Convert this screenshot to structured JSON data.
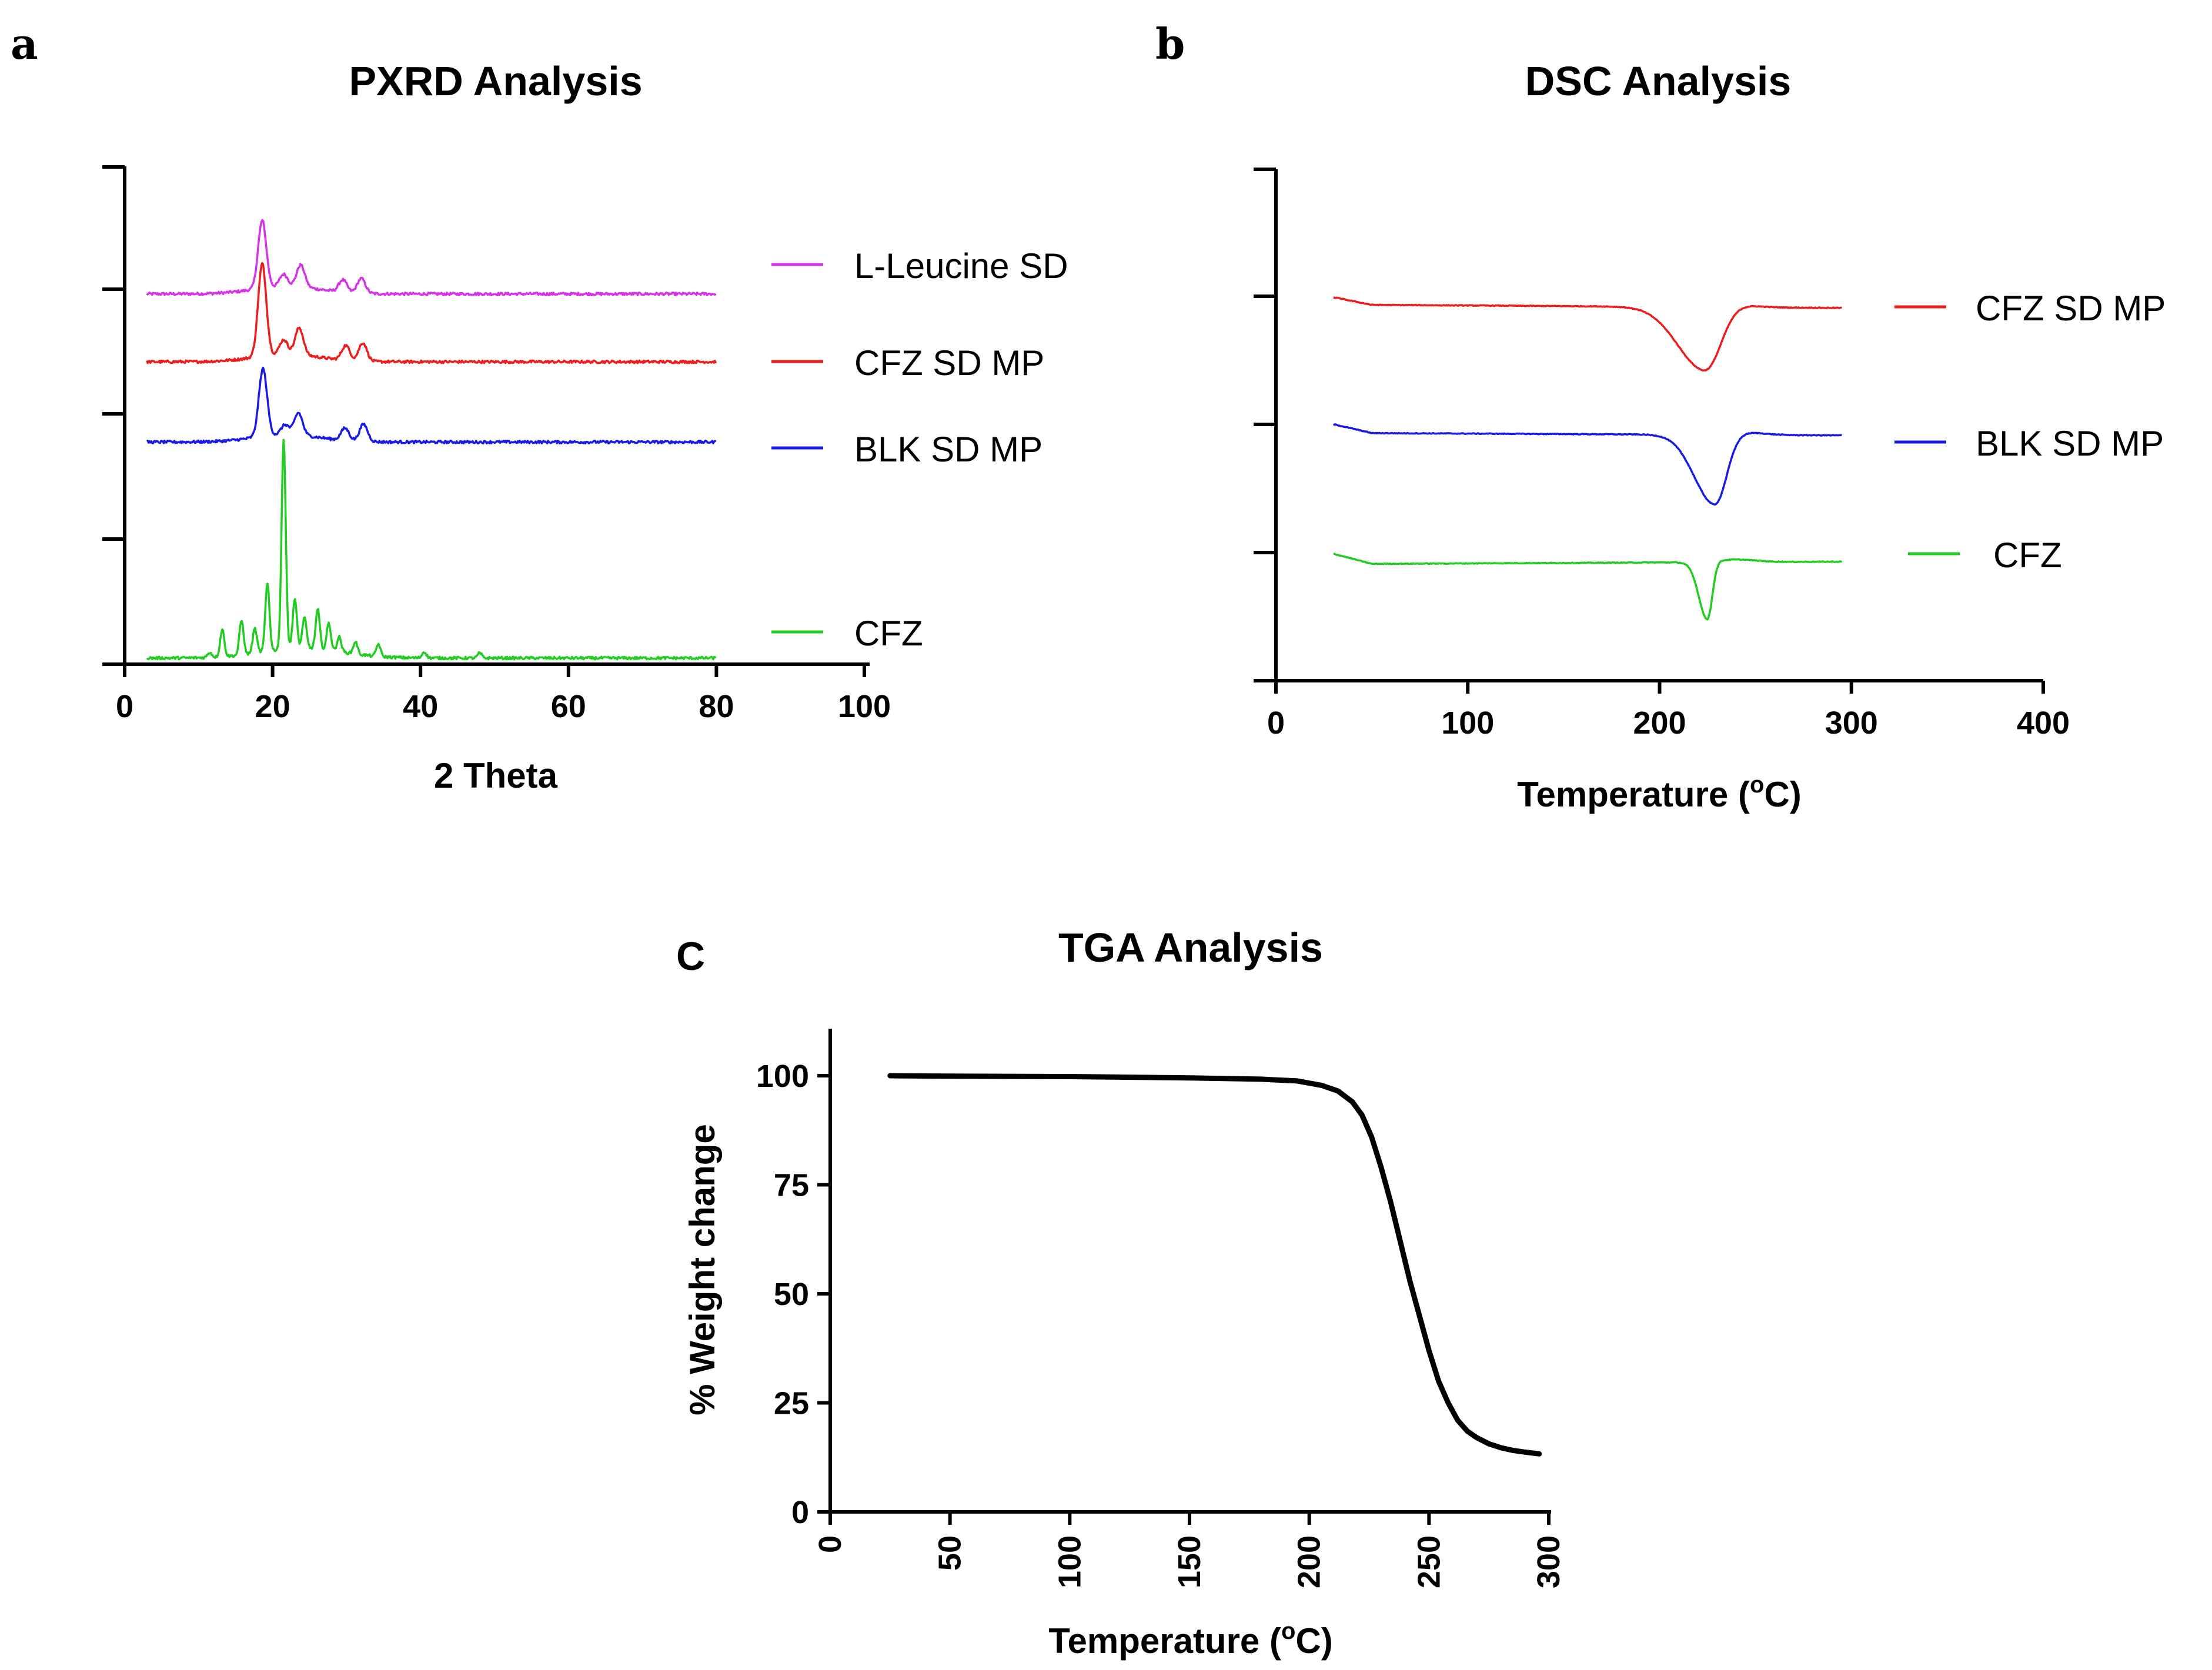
{
  "chart_data": [
    {
      "panel": "a",
      "type": "line",
      "title": "PXRD Analysis",
      "xlabel": "2 Theta",
      "ylabel": "",
      "xlim": [
        0,
        100
      ],
      "xticks": [
        0,
        20,
        40,
        60,
        80,
        100
      ],
      "yticks_labeled": false,
      "legend_position": "right",
      "colors": {
        "L-Leucine SD": "#d633e6",
        "CFZ SD MP": "#ee1c1c",
        "BLK SD MP": "#1a1ae6",
        "CFZ": "#22cc22"
      },
      "series": [
        {
          "name": "L-Leucine SD",
          "baseline": 3.0,
          "peaks": [
            [
              18.6,
              0.55
            ],
            [
              21.5,
              0.1
            ],
            [
              23.8,
              0.18
            ],
            [
              29.5,
              0.1
            ],
            [
              32.0,
              0.12
            ]
          ]
        },
        {
          "name": "CFZ SD MP",
          "baseline": 2.45,
          "peaks": [
            [
              18.6,
              0.75
            ],
            [
              21.5,
              0.12
            ],
            [
              23.6,
              0.22
            ],
            [
              29.9,
              0.12
            ],
            [
              32.2,
              0.15
            ]
          ]
        },
        {
          "name": "BLK SD MP",
          "baseline": 1.8,
          "peaks": [
            [
              18.7,
              0.55
            ],
            [
              21.7,
              0.08
            ],
            [
              23.5,
              0.18
            ],
            [
              29.8,
              0.1
            ],
            [
              32.3,
              0.14
            ]
          ]
        },
        {
          "name": "CFZ",
          "baseline": 0.05,
          "peaks": [
            [
              11.5,
              0.04
            ],
            [
              13.2,
              0.22
            ],
            [
              15.8,
              0.28
            ],
            [
              17.6,
              0.2
            ],
            [
              19.3,
              0.55
            ],
            [
              21.5,
              1.7
            ],
            [
              23.0,
              0.4
            ],
            [
              24.3,
              0.25
            ],
            [
              26.1,
              0.32
            ],
            [
              27.6,
              0.22
            ],
            [
              29.0,
              0.12
            ],
            [
              31.2,
              0.1
            ],
            [
              34.3,
              0.1
            ],
            [
              40.5,
              0.05
            ],
            [
              48.0,
              0.04
            ]
          ]
        }
      ]
    },
    {
      "panel": "b",
      "type": "line",
      "title": "DSC Analysis",
      "xlabel": "Temperature (",
      "xlabel_sup": "o",
      "xlabel_end": "C)",
      "ylabel": "",
      "xlim": [
        0,
        400
      ],
      "xticks": [
        0,
        100,
        200,
        300,
        400
      ],
      "yticks_labeled": false,
      "legend_position": "right",
      "colors": {
        "CFZ SD MP": "#ee1c1c",
        "BLK SD MP": "#1a1ae6",
        "CFZ": "#22cc22"
      },
      "series": [
        {
          "name": "CFZ SD MP",
          "x_range": [
            30,
            295
          ],
          "start": 3.02,
          "flat": 2.96,
          "end": 2.92,
          "dip_center": 224,
          "dip_depth": 0.5,
          "dip_width": 8
        },
        {
          "name": "BLK SD MP",
          "x_range": [
            30,
            295
          ],
          "start": 2.02,
          "flat": 1.95,
          "end": 1.92,
          "dip_center": 229,
          "dip_depth": 0.55,
          "dip_width": 6
        },
        {
          "name": "CFZ",
          "x_range": [
            30,
            295
          ],
          "start": 1.0,
          "flat": 0.92,
          "end": 0.95,
          "dip_center": 225,
          "dip_depth": 0.45,
          "dip_width": 2.5
        }
      ]
    },
    {
      "panel": "c",
      "type": "line",
      "title": "TGA Analysis",
      "xlabel": "Temperature (",
      "xlabel_sup": "o",
      "xlabel_end": "C)",
      "ylabel": "% Weight change",
      "xlim": [
        0,
        300
      ],
      "ylim": [
        0,
        110
      ],
      "xticks": [
        0,
        50,
        100,
        150,
        200,
        250,
        300
      ],
      "yticks": [
        0,
        25,
        50,
        75,
        100
      ],
      "series": [
        {
          "name": "TGA",
          "color": "#000000",
          "x": [
            25,
            50,
            100,
            150,
            180,
            195,
            205,
            212,
            218,
            222,
            226,
            230,
            234,
            238,
            242,
            246,
            250,
            254,
            258,
            262,
            266,
            270,
            275,
            280,
            285,
            290,
            296
          ],
          "y": [
            100,
            99.9,
            99.8,
            99.5,
            99.2,
            98.8,
            97.8,
            96.5,
            94,
            91,
            86,
            79,
            71,
            62,
            53,
            45,
            37,
            30,
            25,
            21,
            18.5,
            17,
            15.6,
            14.7,
            14.1,
            13.7,
            13.3
          ]
        }
      ]
    }
  ]
}
